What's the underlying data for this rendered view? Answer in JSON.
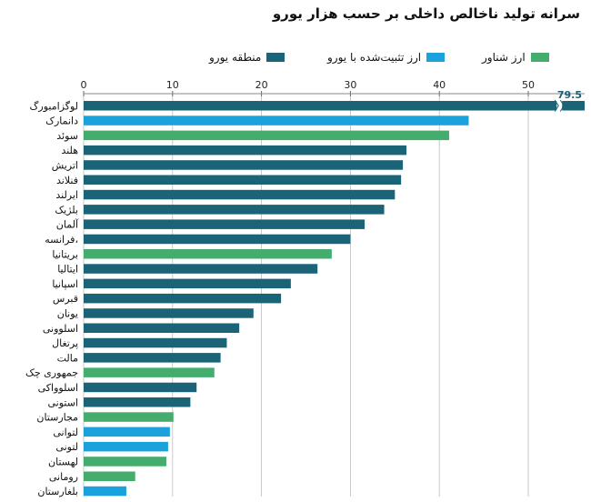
{
  "chart_data": {
    "type": "bar",
    "orientation": "horizontal",
    "title": "سرانه تولید ناخالص داخلی بر حسب هزار یورو",
    "xlabel": "",
    "ylabel": "",
    "xlim": [
      0,
      56
    ],
    "x_ticks": [
      0,
      10,
      20,
      30,
      40,
      50
    ],
    "legend_position": "top",
    "legend": [
      {
        "key": "euro",
        "label": "منطقه یورو",
        "color": "#1b6478"
      },
      {
        "key": "pegged",
        "label": "ارز تثبیت‌شده با یورو",
        "color": "#1ba1dc"
      },
      {
        "key": "floating",
        "label": "ارز شناور",
        "color": "#44ad6d"
      }
    ],
    "categories": [
      "لوگزامبورگ",
      "دانمارک",
      "سوئد",
      "هلند",
      "اتریش",
      "فنلاند",
      "ایرلند",
      "بلژیک",
      "آلمان",
      "فرانسه،",
      "بریتانیا",
      "ایتالیا",
      "اسپانیا",
      "قبرس",
      "یونان",
      "اسلوونی",
      "پرتغال",
      "مالت",
      "جمهوری چک",
      "اسلوواکی",
      "استونی",
      "مجارستان",
      "لتوانی",
      "لتونی",
      "لهستان",
      "رومانی",
      "بلغارستان"
    ],
    "groups": [
      "euro",
      "pegged",
      "floating",
      "euro",
      "euro",
      "euro",
      "euro",
      "euro",
      "euro",
      "euro",
      "floating",
      "euro",
      "euro",
      "euro",
      "euro",
      "euro",
      "euro",
      "euro",
      "floating",
      "euro",
      "euro",
      "floating",
      "pegged",
      "pegged",
      "floating",
      "floating",
      "pegged"
    ],
    "values": [
      79.5,
      43.3,
      41.1,
      36.3,
      35.9,
      35.7,
      35.0,
      33.8,
      31.6,
      30.0,
      27.9,
      26.3,
      23.3,
      22.2,
      19.1,
      17.5,
      16.1,
      15.4,
      14.7,
      12.7,
      12.0,
      10.1,
      9.7,
      9.5,
      9.3,
      5.8,
      4.8
    ],
    "value_labels": [
      {
        "index": 0,
        "text": "79.5"
      }
    ],
    "axis_break": {
      "index": 0,
      "at": 53.5
    }
  }
}
